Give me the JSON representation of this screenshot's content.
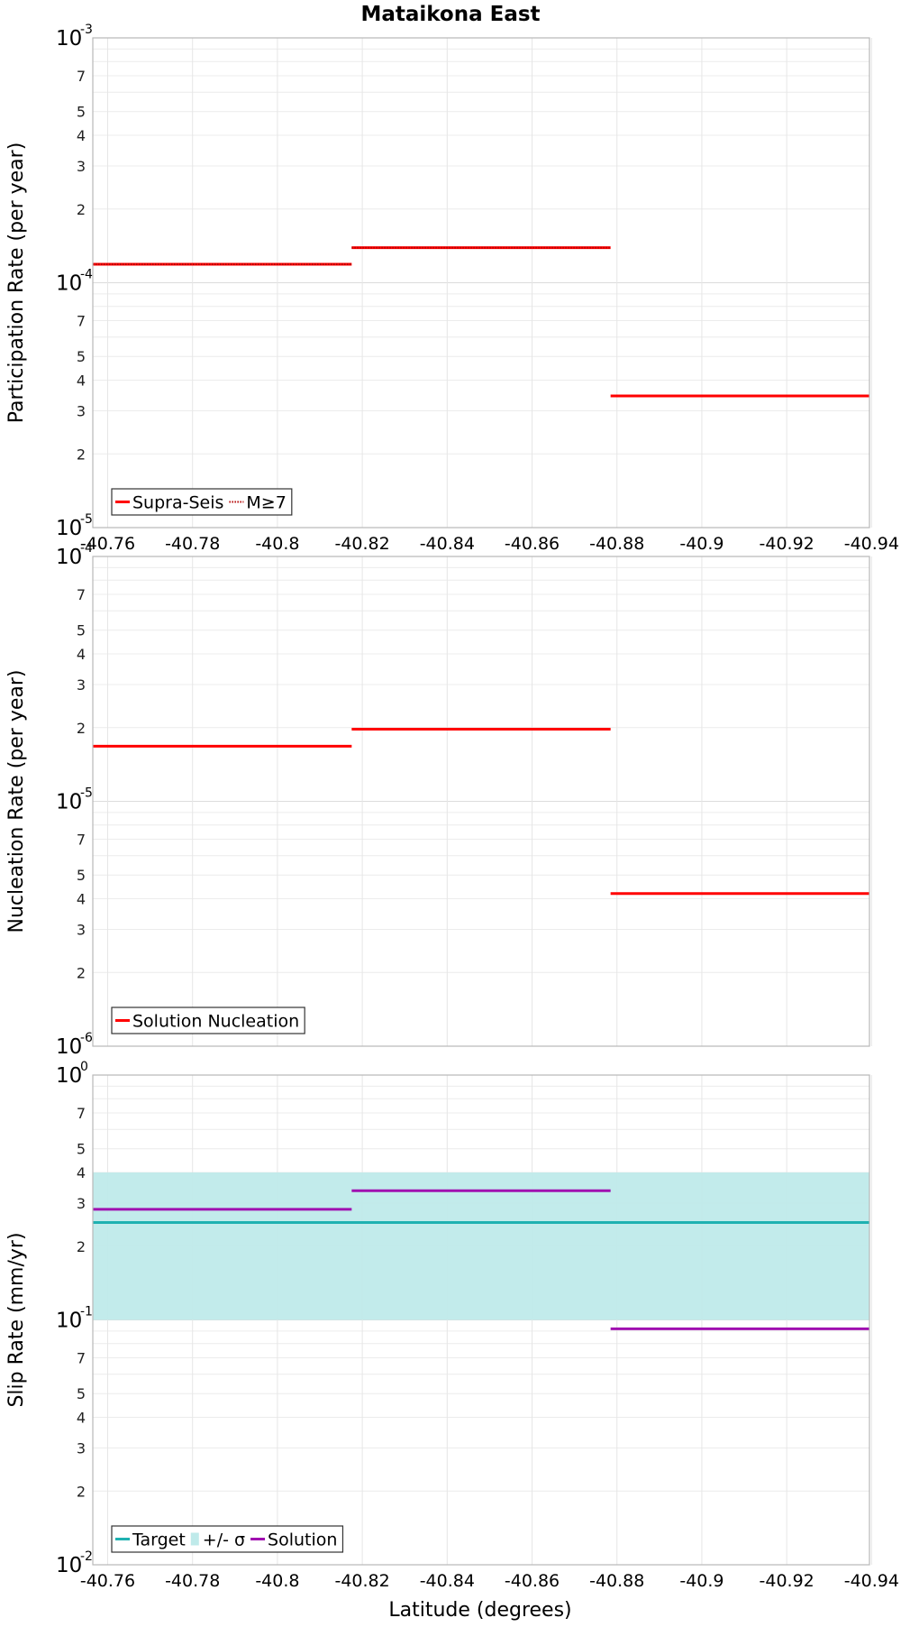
{
  "title": "Mataikona East",
  "xlabel": "Latitude (degrees)",
  "chart_data": [
    {
      "type": "line",
      "name": "participation",
      "ylabel": "Participation Rate (per year)",
      "y_scale": "log",
      "ylim": [
        1e-05,
        0.001
      ],
      "y_decade_exponents": [
        -3,
        -4,
        -5
      ],
      "grid": true,
      "legend": "bottom-left",
      "xlim": [
        -40.7565,
        -40.9395
      ],
      "x_ticks": [
        -40.76,
        -40.78,
        -40.8,
        -40.82,
        -40.84,
        -40.86,
        -40.88,
        -40.9,
        -40.92,
        -40.94
      ],
      "x_tick_labels": [
        "-40.76",
        "-40.78",
        "-40.8",
        "-40.82",
        "-40.84",
        "-40.86",
        "-40.88",
        "-40.9",
        "-40.92",
        "-40.94"
      ],
      "series": [
        {
          "name": "Supra-Seis",
          "color": "#ff0000",
          "style": "solid",
          "segments": [
            {
              "x": [
                -40.7565,
                -40.8175
              ],
              "y": 0.000119
            },
            {
              "x": [
                -40.8175,
                -40.8785
              ],
              "y": 0.000139
            },
            {
              "x": [
                -40.8785,
                -40.9395
              ],
              "y": 3.45e-05
            }
          ]
        },
        {
          "name": "M≥7",
          "color": "#ff0000",
          "style": "dotted",
          "segments": [
            {
              "x": [
                -40.7565,
                -40.8175
              ],
              "y": 0.000119
            },
            {
              "x": [
                -40.8175,
                -40.8785
              ],
              "y": 0.000139
            }
          ]
        }
      ],
      "legend_items": [
        {
          "label": "Supra-Seis",
          "color": "#ff0000",
          "kind": "line"
        },
        {
          "label": "M≥7",
          "color": "#ff0000",
          "kind": "dotted"
        }
      ]
    },
    {
      "type": "line",
      "name": "nucleation",
      "ylabel": "Nucleation Rate (per year)",
      "y_scale": "log",
      "ylim": [
        1e-06,
        0.0001
      ],
      "y_decade_exponents": [
        -4,
        -5,
        -6
      ],
      "grid": true,
      "legend": "bottom-left",
      "xlim": [
        -40.7565,
        -40.9395
      ],
      "x_ticks": [
        -40.76,
        -40.78,
        -40.8,
        -40.82,
        -40.84,
        -40.86,
        -40.88,
        -40.9,
        -40.92,
        -40.94
      ],
      "x_tick_labels": [],
      "series": [
        {
          "name": "Solution Nucleation",
          "color": "#ff0000",
          "style": "solid",
          "segments": [
            {
              "x": [
                -40.7565,
                -40.8175
              ],
              "y": 1.68e-05
            },
            {
              "x": [
                -40.8175,
                -40.8785
              ],
              "y": 1.97e-05
            },
            {
              "x": [
                -40.8785,
                -40.9395
              ],
              "y": 4.2e-06
            }
          ]
        }
      ],
      "legend_items": [
        {
          "label": "Solution Nucleation",
          "color": "#ff0000",
          "kind": "line"
        }
      ]
    },
    {
      "type": "line",
      "name": "slip",
      "ylabel": "Slip Rate (mm/yr)",
      "y_scale": "log",
      "ylim": [
        0.01,
        1
      ],
      "y_decade_exponents": [
        0,
        -1,
        -2
      ],
      "grid": true,
      "legend": "bottom-left",
      "xlim": [
        -40.7565,
        -40.9395
      ],
      "x_ticks": [
        -40.76,
        -40.78,
        -40.8,
        -40.82,
        -40.84,
        -40.86,
        -40.88,
        -40.9,
        -40.92,
        -40.94
      ],
      "x_tick_labels": [
        "-40.76",
        "-40.78",
        "-40.8",
        "-40.82",
        "-40.84",
        "-40.86",
        "-40.88",
        "-40.9",
        "-40.92",
        "-40.94"
      ],
      "band": {
        "name": "+/- σ",
        "color": "#bfeaea",
        "y_low": 0.1,
        "y_high": 0.4
      },
      "series": [
        {
          "name": "Target",
          "color": "#1fb1b1",
          "style": "solid",
          "segments": [
            {
              "x": [
                -40.7565,
                -40.9395
              ],
              "y": 0.25
            }
          ]
        },
        {
          "name": "Solution",
          "color": "#a010b0",
          "style": "solid",
          "segments": [
            {
              "x": [
                -40.7565,
                -40.8175
              ],
              "y": 0.283
            },
            {
              "x": [
                -40.8175,
                -40.8785
              ],
              "y": 0.337
            },
            {
              "x": [
                -40.8785,
                -40.9395
              ],
              "y": 0.092
            }
          ]
        }
      ],
      "legend_items": [
        {
          "label": "Target",
          "color": "#1fb1b1",
          "kind": "line"
        },
        {
          "label": "+/- σ",
          "color": "#bfeaea",
          "kind": "patch"
        },
        {
          "label": "Solution",
          "color": "#a010b0",
          "kind": "line"
        }
      ]
    }
  ]
}
